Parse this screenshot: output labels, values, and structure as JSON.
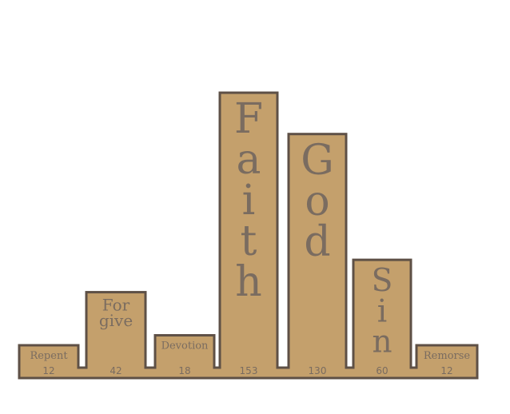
{
  "chart_data": {
    "type": "bar",
    "categories": [
      "Repent",
      "Forgive",
      "Devotion",
      "Faith",
      "God",
      "Sin",
      "Remorse"
    ],
    "label_lines": [
      [
        "Repent"
      ],
      [
        "For",
        "give"
      ],
      [
        "Devotion"
      ],
      [
        "F",
        "a",
        "i",
        "t",
        "h"
      ],
      [
        "G",
        "o",
        "d"
      ],
      [
        "S",
        "i",
        "n"
      ],
      [
        "Remorse"
      ]
    ],
    "values": [
      12,
      42,
      18,
      153,
      130,
      60,
      12
    ],
    "value_labels": [
      "12",
      "42",
      "18",
      "153",
      "130",
      "60",
      "12"
    ],
    "title": "",
    "xlabel": "",
    "ylabel": "",
    "ylim": [
      0,
      153
    ],
    "grid": false,
    "legend": "none",
    "colors": {
      "bar_fill": "#c4a06c",
      "outline": "#5e5046",
      "label_text": "#7a6c60"
    }
  }
}
